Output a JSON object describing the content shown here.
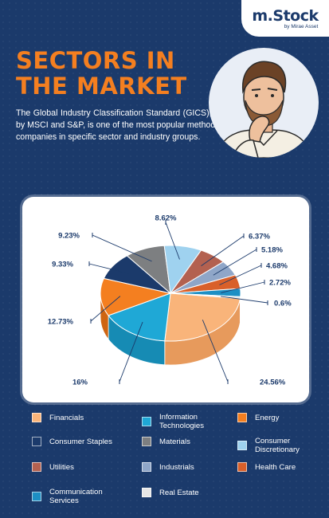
{
  "brand": {
    "logo": "m.Stock",
    "tagline": "by Mirae Asset"
  },
  "header": {
    "title_line1": "SECTORS IN",
    "title_line2": "THE MARKET",
    "description": "The Global Industry Classification Standard (GICS), developed by MSCI and S&P, is one of the most popular methods to divide companies in specific sector and industry groups."
  },
  "chart_data": {
    "type": "pie",
    "title": "",
    "slices": [
      {
        "name": "Financials",
        "value": 24.56,
        "label": "24.56%",
        "color": "#f9b47a",
        "side": "#e79a5c"
      },
      {
        "name": "Information Technologies",
        "value": 16,
        "label": "16%",
        "color": "#1fa8d6",
        "side": "#168bb4"
      },
      {
        "name": "Energy",
        "value": 12.73,
        "label": "12.73%",
        "color": "#f47f20",
        "side": "#cf6512"
      },
      {
        "name": "Consumer Staples",
        "value": 9.33,
        "label": "9.33%",
        "color": "#1b3a6b",
        "side": "#122a50"
      },
      {
        "name": "Materials",
        "value": 9.23,
        "label": "9.23%",
        "color": "#7d7f81",
        "side": "#626466"
      },
      {
        "name": "Consumer Discretionary",
        "value": 8.62,
        "label": "8.62%",
        "color": "#9fd2ef",
        "side": "#7fb6d6"
      },
      {
        "name": "Utilities",
        "value": 6.37,
        "label": "6.37%",
        "color": "#b36150",
        "side": "#91493b"
      },
      {
        "name": "Industrials",
        "value": 5.18,
        "label": "5.18%",
        "color": "#8fa6c8",
        "side": "#7189ad"
      },
      {
        "name": "Health Care",
        "value": 4.68,
        "label": "4.68%",
        "color": "#d9602a",
        "side": "#b3481b"
      },
      {
        "name": "Communication Services",
        "value": 2.72,
        "label": "2.72%",
        "color": "#1d8fc4",
        "side": "#1573a0"
      },
      {
        "name": "Real Estate",
        "value": 0.6,
        "label": "0.6%",
        "color": "#e6e6e6",
        "side": "#c4c4c4"
      }
    ]
  },
  "legend": [
    {
      "label": "Financials",
      "color": "#f9b47a"
    },
    {
      "label": "Information Technologies",
      "color": "#1fa8d6"
    },
    {
      "label": "Energy",
      "color": "#f47f20"
    },
    {
      "label": "Consumer Staples",
      "color": "#1b3a6b"
    },
    {
      "label": "Materials",
      "color": "#7d7f81"
    },
    {
      "label": "Consumer Discretionary",
      "color": "#9fd2ef"
    },
    {
      "label": "Utilities",
      "color": "#b36150"
    },
    {
      "label": "Industrials",
      "color": "#8fa6c8"
    },
    {
      "label": "Health Care",
      "color": "#d9602a"
    },
    {
      "label": "Communication Services",
      "color": "#1d8fc4"
    },
    {
      "label": "Real Estate",
      "color": "#e6e6e6"
    }
  ]
}
